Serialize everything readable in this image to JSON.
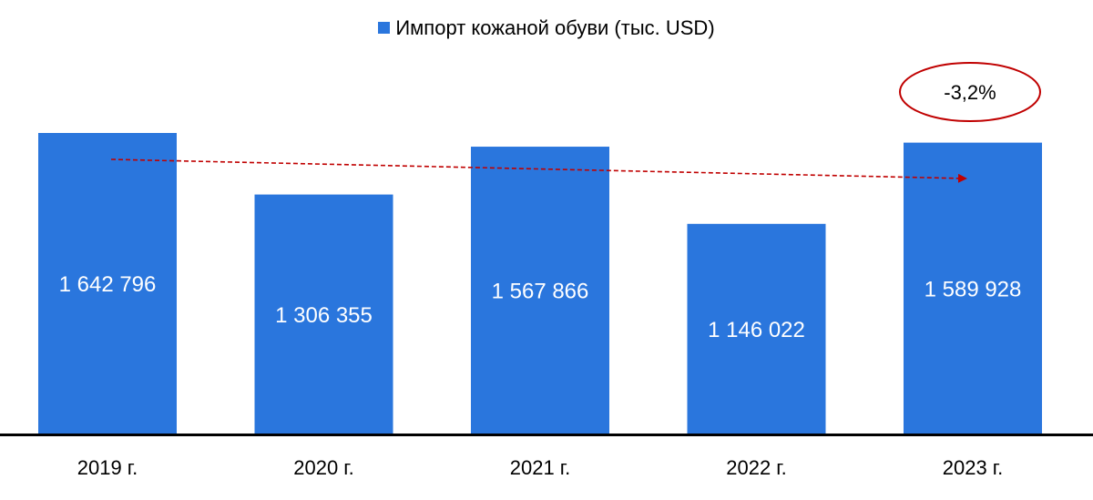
{
  "chart_data": {
    "type": "bar",
    "categories": [
      "2019 г.",
      "2020 г.",
      "2021 г.",
      "2022 г.",
      "2023 г."
    ],
    "series": [
      {
        "name": "Импорт кожаной обуви (тыс. USD)",
        "values": [
          1642796,
          1306355,
          1567866,
          1146022,
          1589928
        ],
        "value_labels": [
          "1 642 796",
          "1 306 355",
          "1 567 866",
          "1 146 022",
          "1 589 928"
        ]
      }
    ],
    "ylim": [
      0,
      2000000
    ],
    "grid": false,
    "legend_position": "top-center",
    "colors": {
      "bar": "#2a76dd",
      "trend": "#c00000",
      "axis": "#000000"
    },
    "annotations": [
      {
        "text": "-3,2%",
        "shape": "ellipse",
        "from_category": "2019 г.",
        "to_category": "2023 г.",
        "arrow": "dashed"
      }
    ]
  }
}
